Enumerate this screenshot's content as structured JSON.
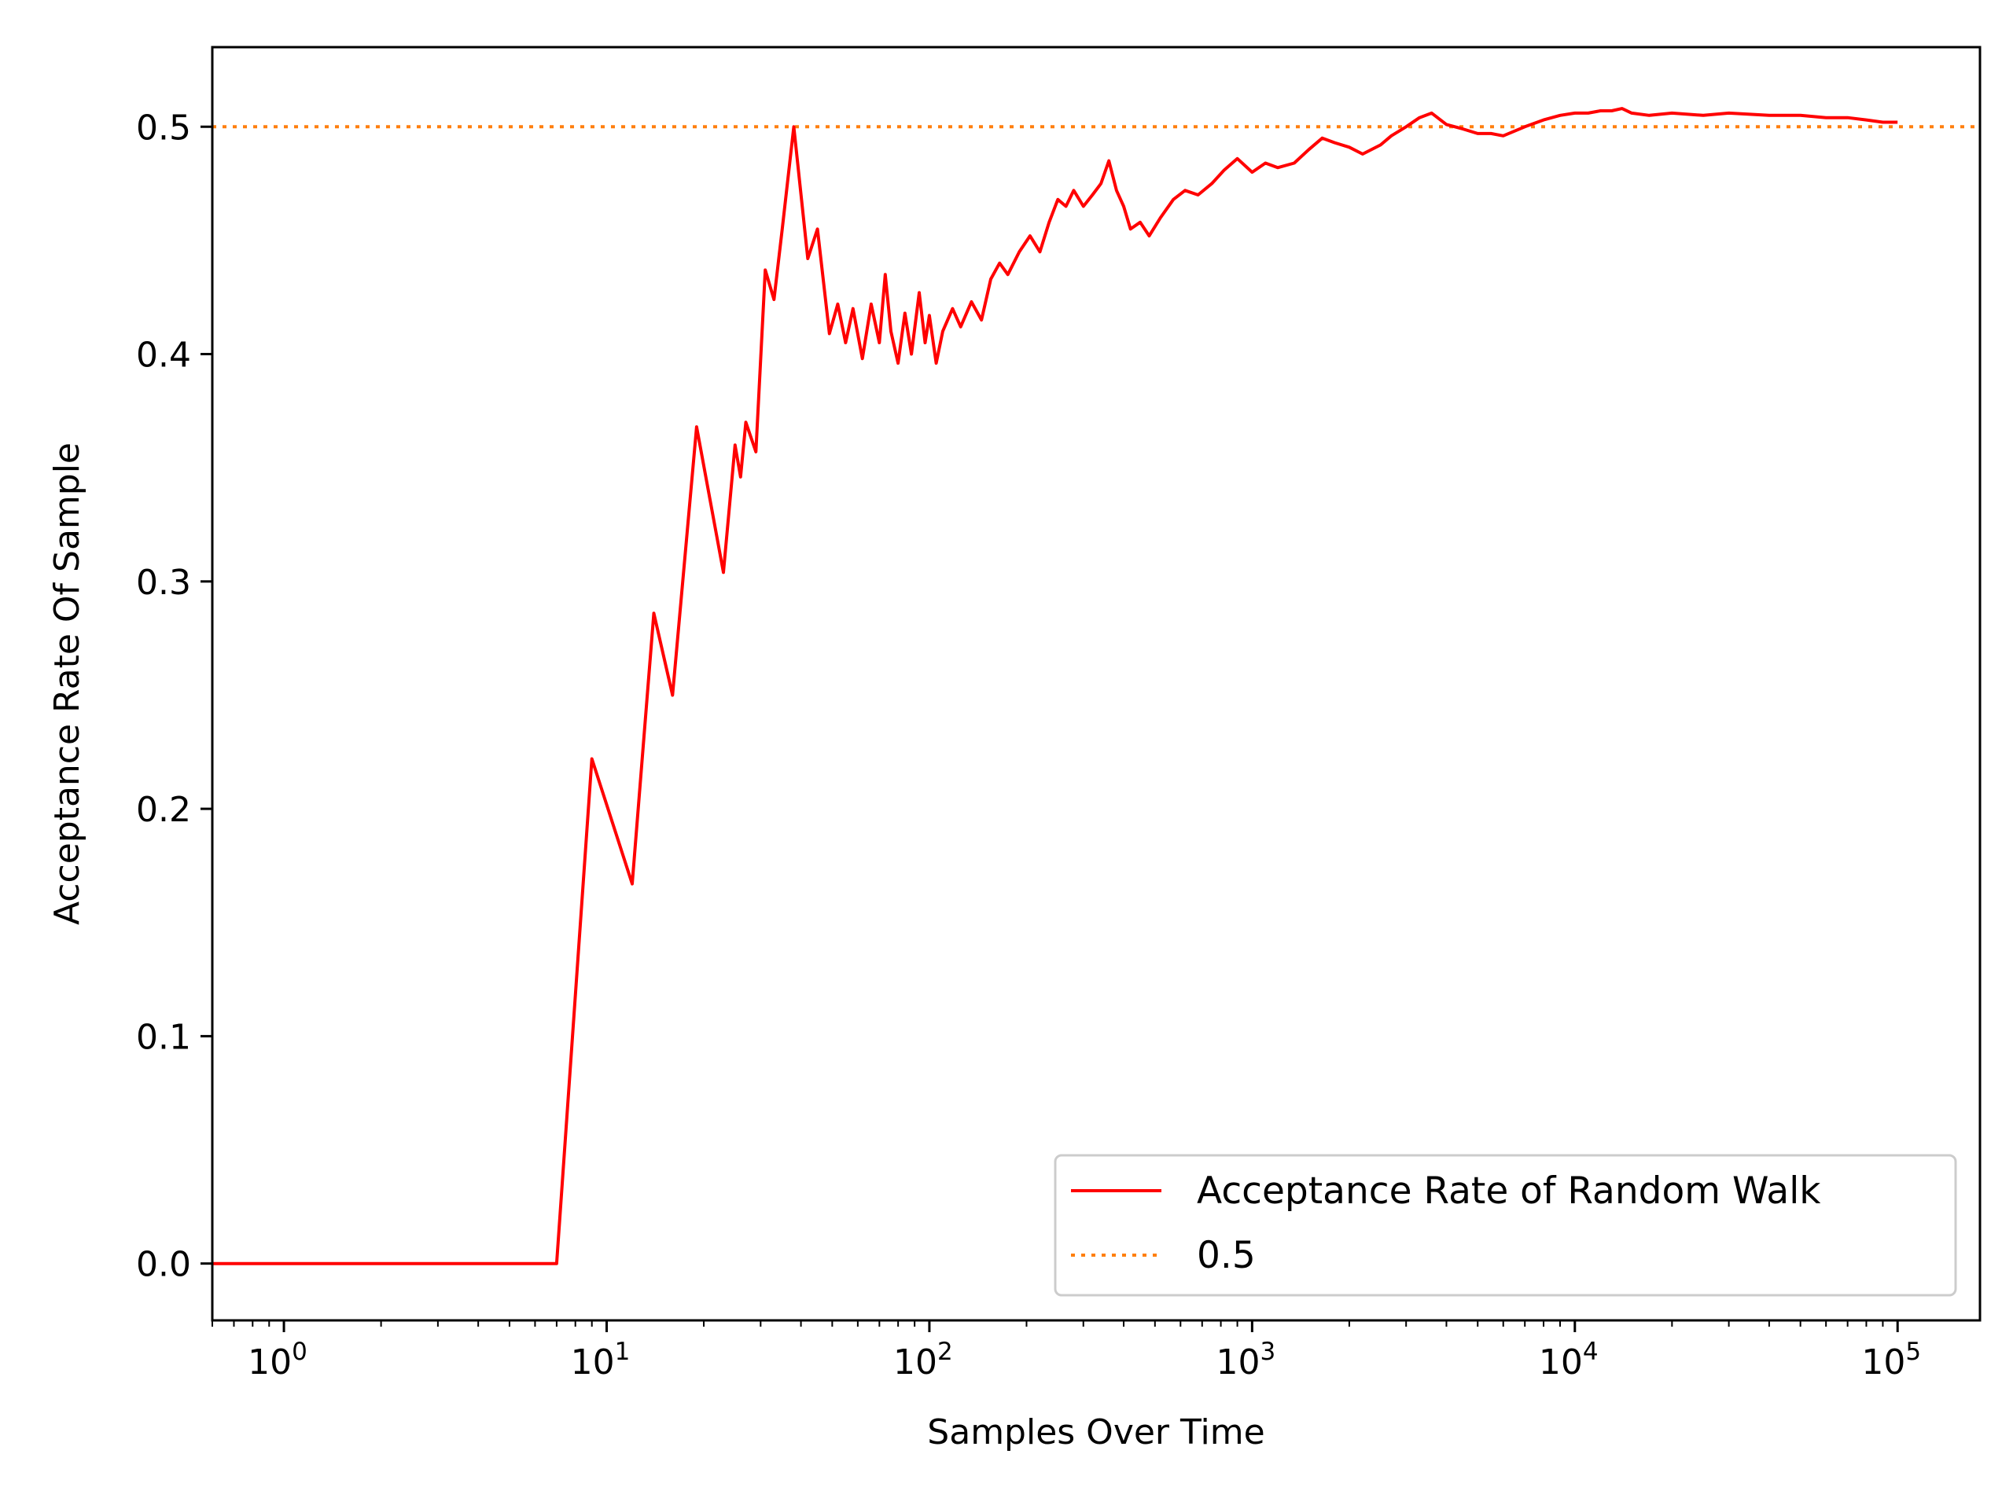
{
  "chart_data": {
    "type": "line",
    "title": "",
    "xlabel": "Samples Over Time",
    "ylabel": "Acceptance Rate Of Sample",
    "xscale": "log",
    "xlim": [
      0.6,
      180000
    ],
    "ylim": [
      -0.025,
      0.535
    ],
    "xticks": [
      {
        "value": 1,
        "base": "10",
        "exp": "0"
      },
      {
        "value": 10,
        "base": "10",
        "exp": "1"
      },
      {
        "value": 100,
        "base": "10",
        "exp": "2"
      },
      {
        "value": 1000,
        "base": "10",
        "exp": "3"
      },
      {
        "value": 10000,
        "base": "10",
        "exp": "4"
      },
      {
        "value": 100000,
        "base": "10",
        "exp": "5"
      }
    ],
    "yticks": [
      {
        "value": 0.0,
        "label": "0.0"
      },
      {
        "value": 0.1,
        "label": "0.1"
      },
      {
        "value": 0.2,
        "label": "0.2"
      },
      {
        "value": 0.3,
        "label": "0.3"
      },
      {
        "value": 0.4,
        "label": "0.4"
      },
      {
        "value": 0.5,
        "label": "0.5"
      }
    ],
    "grid": false,
    "legend_position": "lower-right",
    "series": [
      {
        "name": "Acceptance Rate of Random Walk",
        "color": "#ff0000",
        "style": "solid",
        "x": [
          0.6,
          1,
          2,
          4,
          7,
          9,
          12,
          14,
          16,
          19,
          23,
          25,
          26,
          27,
          29,
          31,
          33,
          35,
          38,
          42,
          45,
          49,
          52,
          55,
          58,
          62,
          66,
          70,
          73,
          76,
          80,
          84,
          88,
          93,
          97,
          100,
          105,
          110,
          118,
          125,
          135,
          145,
          155,
          165,
          175,
          190,
          205,
          220,
          235,
          250,
          265,
          280,
          300,
          320,
          340,
          360,
          380,
          400,
          420,
          450,
          480,
          520,
          570,
          620,
          680,
          750,
          820,
          900,
          1000,
          1100,
          1200,
          1350,
          1500,
          1650,
          1800,
          2000,
          2200,
          2500,
          2700,
          3000,
          3300,
          3600,
          4000,
          4500,
          5000,
          5500,
          6000,
          7000,
          8000,
          9000,
          10000,
          11000,
          12000,
          13000,
          14000,
          15000,
          17000,
          20000,
          25000,
          30000,
          40000,
          50000,
          60000,
          70000,
          80000,
          90000,
          100000
        ],
        "y": [
          0.0,
          0.0,
          0.0,
          0.0,
          0.0,
          0.222,
          0.167,
          0.286,
          0.25,
          0.368,
          0.304,
          0.36,
          0.346,
          0.37,
          0.357,
          0.437,
          0.424,
          0.455,
          0.5,
          0.442,
          0.455,
          0.409,
          0.422,
          0.405,
          0.42,
          0.398,
          0.422,
          0.405,
          0.435,
          0.41,
          0.396,
          0.418,
          0.4,
          0.427,
          0.405,
          0.417,
          0.396,
          0.41,
          0.42,
          0.412,
          0.423,
          0.415,
          0.433,
          0.44,
          0.435,
          0.445,
          0.452,
          0.445,
          0.458,
          0.468,
          0.465,
          0.472,
          0.465,
          0.47,
          0.475,
          0.485,
          0.472,
          0.465,
          0.455,
          0.458,
          0.452,
          0.46,
          0.468,
          0.472,
          0.47,
          0.475,
          0.481,
          0.486,
          0.48,
          0.484,
          0.482,
          0.484,
          0.49,
          0.495,
          0.493,
          0.491,
          0.488,
          0.492,
          0.496,
          0.5,
          0.504,
          0.506,
          0.501,
          0.499,
          0.497,
          0.497,
          0.496,
          0.5,
          0.503,
          0.505,
          0.506,
          0.506,
          0.507,
          0.507,
          0.508,
          0.506,
          0.505,
          0.506,
          0.505,
          0.506,
          0.505,
          0.505,
          0.504,
          0.504,
          0.503,
          0.502,
          0.502
        ]
      },
      {
        "name": "0.5",
        "color": "#ff7f0e",
        "style": "dotted",
        "x": [
          0.6,
          180000
        ],
        "y": [
          0.5,
          0.5
        ]
      }
    ]
  }
}
